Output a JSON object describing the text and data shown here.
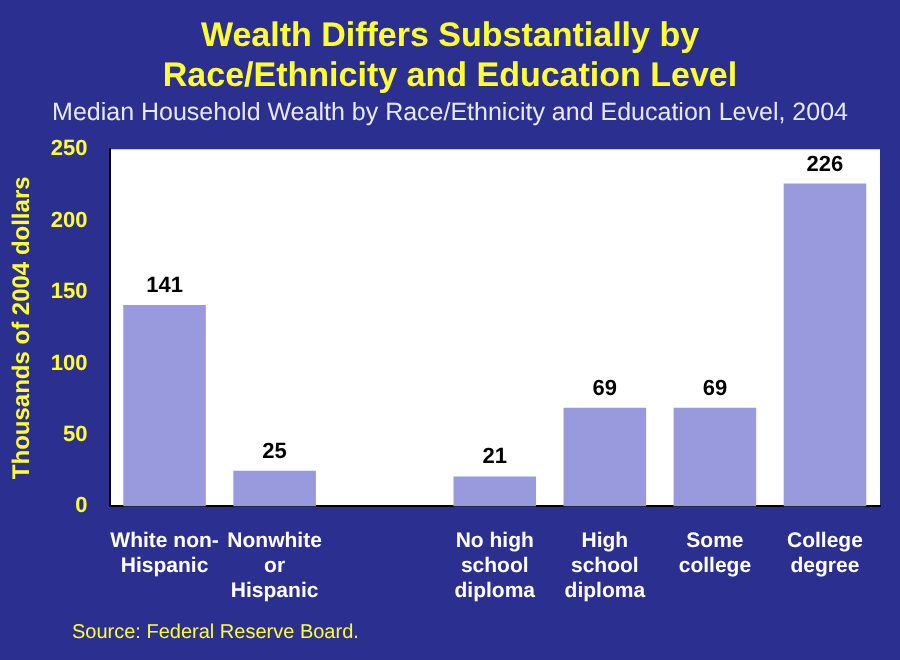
{
  "chart_data": {
    "type": "bar",
    "title": "Wealth Differs Substantially by Race/Ethnicity and Education Level",
    "subtitle": "Median Household Wealth by Race/Ethnicity and Education Level, 2004",
    "ylabel": "Thousands of 2004 dollars",
    "categories": [
      "White non-Hispanic",
      "Nonwhite or Hispanic",
      null,
      "No high school diploma",
      "High school diploma",
      "Some college",
      "College degree"
    ],
    "values": [
      141,
      25,
      null,
      21,
      69,
      69,
      226
    ],
    "color": "#9999dd",
    "ylim": [
      0,
      250
    ],
    "yticks": [
      0,
      50,
      100,
      150,
      200,
      250
    ],
    "grid": false,
    "legend": false,
    "data_labels": true,
    "annotations": [
      "Source: Federal Reserve Board."
    ]
  }
}
